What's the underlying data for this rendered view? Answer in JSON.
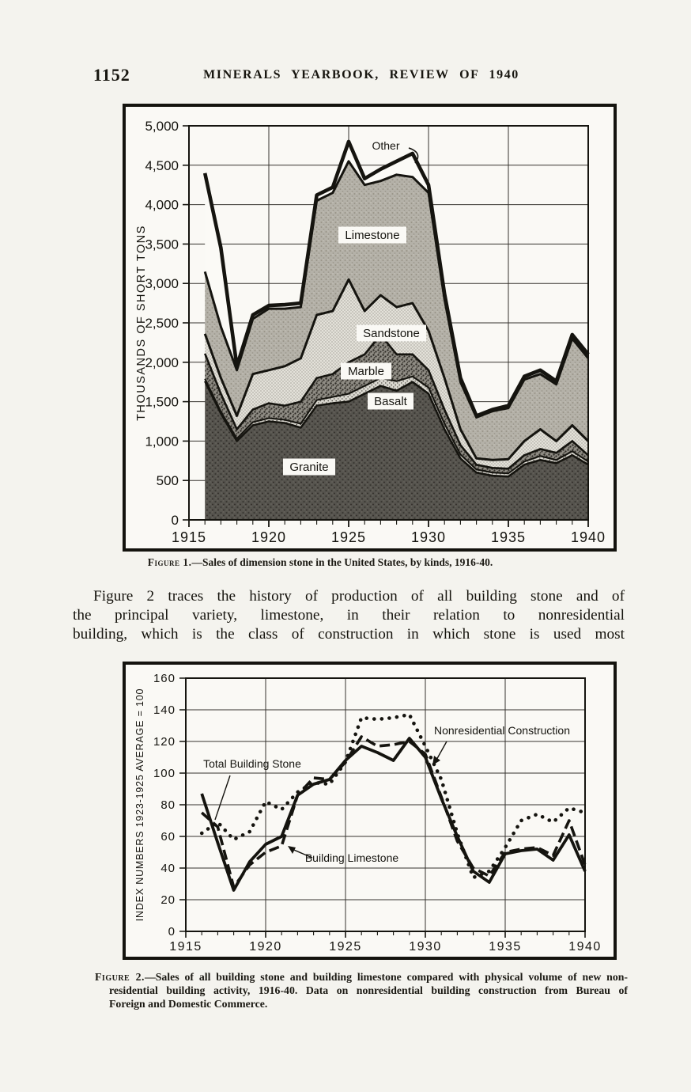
{
  "header": {
    "page_number": "1152",
    "title": "MINERALS YEARBOOK, REVIEW OF 1940"
  },
  "figure1": {
    "caption_label": "Figure 1.",
    "caption_text": "—Sales of dimension stone in the United States, by kinds, 1916-40."
  },
  "paragraph": {
    "lines": [
      "Figure 2 traces the history of production of all building stone and of",
      "the principal variety, limestone, in their relation to nonresidential",
      "building, which is the class of construction in which stone is used most"
    ]
  },
  "figure2": {
    "caption_label": "Figure 2.",
    "caption_lines": [
      "—Sales of all building stone and building limestone compared with physical volume of new non-",
      "residential building activity, 1916-40.  Data on nonresidential building construction from Bureau of",
      "Foreign and Domestic Commerce."
    ]
  },
  "chart_data": [
    {
      "id": "figure-1",
      "type": "area",
      "stacked": true,
      "title": "Sales of dimension stone in the United States, by kinds, 1916-40",
      "ylabel": "THOUSANDS OF SHORT TONS",
      "xlabel": "",
      "grid": true,
      "xlim": [
        1915,
        1940
      ],
      "ylim": [
        0,
        5000
      ],
      "x_ticks": [
        1915,
        1920,
        1925,
        1930,
        1935,
        1940
      ],
      "y_tick_step": 500,
      "y_tick_labels": [
        "0",
        "500",
        "1,000",
        "1,500",
        "2,000",
        "2,500",
        "3,000",
        "3,500",
        "4,000",
        "4,500",
        "5,000"
      ],
      "x": [
        1916,
        1917,
        1918,
        1919,
        1920,
        1921,
        1922,
        1923,
        1924,
        1925,
        1926,
        1927,
        1928,
        1929,
        1930,
        1931,
        1932,
        1933,
        1934,
        1935,
        1936,
        1937,
        1938,
        1939,
        1940
      ],
      "units": "thousand short tons",
      "series": [
        {
          "name": "Granite",
          "values": [
            1760,
            1350,
            1000,
            1200,
            1250,
            1230,
            1170,
            1450,
            1480,
            1500,
            1600,
            1700,
            1640,
            1750,
            1600,
            1150,
            780,
            600,
            560,
            550,
            700,
            760,
            720,
            820,
            700
          ]
        },
        {
          "name": "Basalt",
          "values": [
            30,
            25,
            30,
            40,
            40,
            40,
            50,
            70,
            80,
            100,
            100,
            100,
            120,
            70,
            80,
            70,
            50,
            40,
            40,
            40,
            40,
            50,
            40,
            50,
            40
          ]
        },
        {
          "name": "Marble",
          "values": [
            320,
            225,
            120,
            160,
            190,
            180,
            280,
            280,
            290,
            400,
            400,
            550,
            340,
            280,
            220,
            180,
            120,
            60,
            60,
            60,
            80,
            90,
            90,
            130,
            80
          ]
        },
        {
          "name": "Sandstone",
          "values": [
            250,
            200,
            170,
            450,
            420,
            500,
            550,
            800,
            800,
            1050,
            550,
            500,
            600,
            650,
            500,
            400,
            200,
            80,
            100,
            120,
            180,
            250,
            150,
            200,
            180
          ]
        },
        {
          "name": "Limestone",
          "values": [
            790,
            650,
            580,
            700,
            780,
            730,
            650,
            1450,
            1500,
            1500,
            1600,
            1450,
            1680,
            1600,
            1750,
            1000,
            600,
            520,
            620,
            650,
            780,
            700,
            720,
            1100,
            1050
          ]
        },
        {
          "name": "Other",
          "values": [
            1250,
            1000,
            50,
            50,
            40,
            50,
            50,
            70,
            70,
            250,
            80,
            150,
            170,
            300,
            100,
            70,
            50,
            20,
            20,
            30,
            40,
            50,
            40,
            50,
            50
          ]
        }
      ]
    },
    {
      "id": "figure-2",
      "type": "line",
      "title": "Sales of all building stone and building limestone compared with physical volume of new nonresidential building activity, 1916-40",
      "ylabel": "INDEX NUMBERS 1923-1925 AVERAGE = 100",
      "xlabel": "",
      "grid": true,
      "xlim": [
        1915,
        1940
      ],
      "ylim": [
        0,
        160
      ],
      "x_ticks": [
        1915,
        1920,
        1925,
        1930,
        1935,
        1940
      ],
      "y_tick_step": 20,
      "y_tick_labels": [
        "0",
        "20",
        "40",
        "60",
        "80",
        "100",
        "120",
        "140",
        "160"
      ],
      "x": [
        1916,
        1917,
        1918,
        1919,
        1920,
        1921,
        1922,
        1923,
        1924,
        1925,
        1926,
        1927,
        1928,
        1929,
        1930,
        1931,
        1932,
        1933,
        1934,
        1935,
        1936,
        1937,
        1938,
        1939,
        1940
      ],
      "series": [
        {
          "name": "Total Building Stone",
          "line_style": "solid",
          "values": [
            87,
            56,
            26,
            44,
            55,
            60,
            86,
            93,
            96,
            108,
            117,
            113,
            108,
            122,
            110,
            84,
            60,
            38,
            31,
            49,
            51,
            52,
            45,
            61,
            38
          ]
        },
        {
          "name": "Building Limestone",
          "line_style": "dashed",
          "values": [
            75,
            66,
            28,
            42,
            50,
            54,
            86,
            97,
            96,
            107,
            123,
            117,
            118,
            120,
            112,
            85,
            57,
            40,
            35,
            50,
            52,
            53,
            48,
            70,
            42
          ]
        },
        {
          "name": "Nonresidential Construction",
          "line_style": "dotted",
          "values": [
            62,
            69,
            58,
            63,
            82,
            77,
            88,
            94,
            93,
            107,
            135,
            134,
            135,
            137,
            117,
            96,
            62,
            34,
            38,
            53,
            70,
            74,
            69,
            78,
            75
          ]
        }
      ]
    }
  ]
}
